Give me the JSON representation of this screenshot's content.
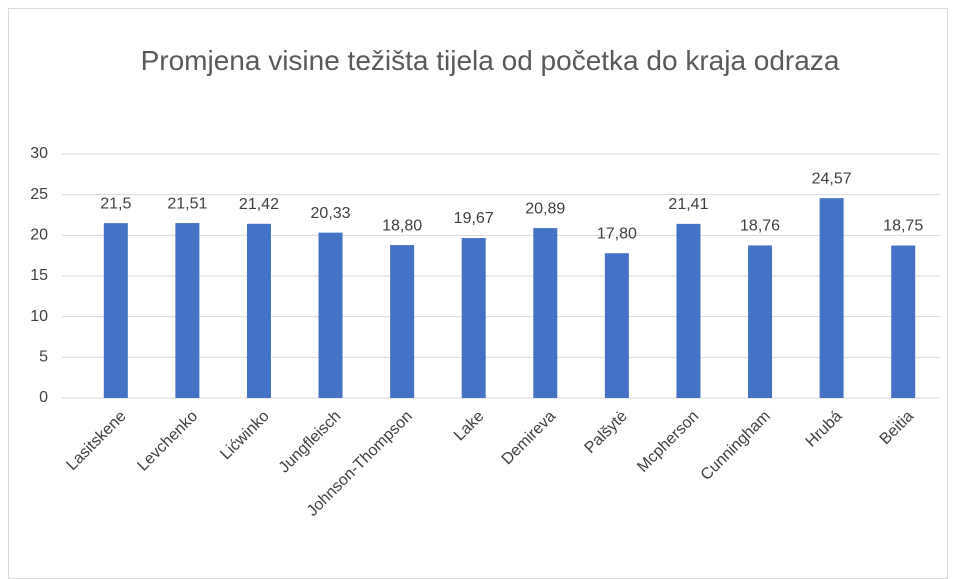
{
  "chart_data": {
    "type": "bar",
    "title": "Promjena visine težišta tijela od početka do kraja odraza",
    "categories": [
      "Lasitskene",
      "Levchenko",
      "Lićwinko",
      "Jungfleisch",
      "Johnson-Thompson",
      "Lake",
      "Demireva",
      "Palšytė",
      "Mcpherson",
      "Cunningham",
      "Hrubá",
      "Beitia"
    ],
    "values": [
      21.5,
      21.51,
      21.42,
      20.33,
      18.8,
      19.67,
      20.89,
      17.8,
      21.41,
      18.76,
      24.57,
      18.75
    ],
    "value_labels": [
      "21,5",
      "21,51",
      "21,42",
      "20,33",
      "18,80",
      "19,67",
      "20,89",
      "17,80",
      "21,41",
      "18,76",
      "24,57",
      "18,75"
    ],
    "color": "#4472c4",
    "ylim": [
      0,
      30
    ],
    "yticks": [
      0,
      5,
      10,
      15,
      20,
      25,
      30
    ],
    "grid": true
  }
}
